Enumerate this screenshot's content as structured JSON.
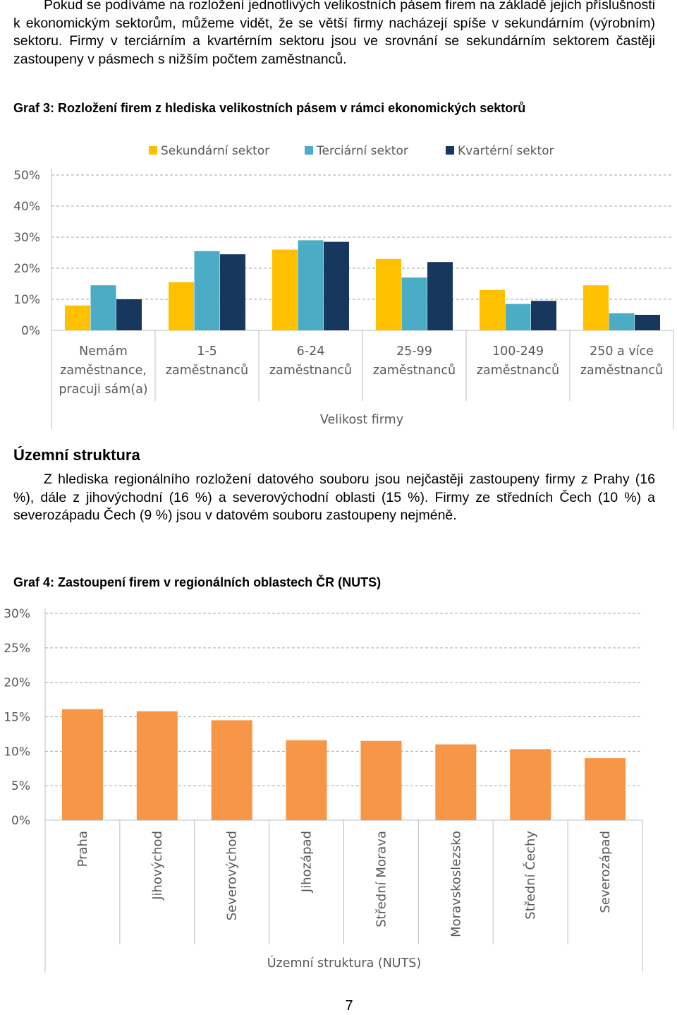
{
  "paragraph_1": "Pokud se podíváme na rozložení jednotlivých velikostních pásem firem na základě jejich příslušnosti k ekonomickým sektorům, můžeme vidět, že se větší firmy nacházejí spíše v sekundárním (výrobním) sektoru. Firmy v terciárním a kvartérním sektoru jsou ve srovnání se sekundárním sektorem častěji zastoupeny v pásmech s nižším počtem zaměstnanců.",
  "caption_1": "Graf 3: Rozložení firem z hlediska velikostních pásem v rámci ekonomických sektorů",
  "heading": "Územní struktura",
  "paragraph_2": "Z hlediska regionálního rozložení datového souboru jsou nejčastěji zastoupeny firmy z Prahy (16 %), dále z jihovýchodní (16 %) a severovýchodní oblasti (15 %). Firmy ze středních Čech (10 %) a severozápadu Čech (9 %) jsou v datovém souboru zastoupeny nejméně.",
  "caption_2": "Graf 4: Zastoupení firem v regionálních oblastech ČR (NUTS)",
  "page_number": "7",
  "chart_data": [
    {
      "type": "bar",
      "title": "",
      "xlabel": "Velikost firmy",
      "ylabel": "",
      "ylim": [
        0,
        50
      ],
      "yticks": [
        "0%",
        "10%",
        "20%",
        "30%",
        "40%",
        "50%"
      ],
      "grid": "dashed horizontal",
      "legend": "top",
      "categories": [
        [
          "Nemám",
          "zaměstnance,",
          "pracuji sám(a)"
        ],
        [
          "1-5",
          "zaměstnanců"
        ],
        [
          "6-24",
          "zaměstnanců"
        ],
        [
          "25-99",
          "zaměstnanců"
        ],
        [
          "100-249",
          "zaměstnanců"
        ],
        [
          "250 a více",
          "zaměstnanců"
        ]
      ],
      "series": [
        {
          "name": "Sekundární sektor",
          "color": "#FFC000",
          "values": [
            8,
            15.5,
            26,
            23,
            13,
            14.5
          ]
        },
        {
          "name": "Terciární sektor",
          "color": "#4BACC6",
          "values": [
            14.5,
            25.5,
            29,
            17,
            8.5,
            5.5
          ]
        },
        {
          "name": "Kvartérní sektor",
          "color": "#17375E",
          "values": [
            10,
            24.5,
            28.5,
            22,
            9.5,
            5
          ]
        }
      ]
    },
    {
      "type": "bar",
      "title": "",
      "xlabel": "Územní struktura (NUTS)",
      "ylabel": "",
      "ylim": [
        0,
        30
      ],
      "yticks": [
        "0%",
        "5%",
        "10%",
        "15%",
        "20%",
        "25%",
        "30%"
      ],
      "grid": "dashed horizontal",
      "color": "#F79646",
      "categories": [
        "Praha",
        "Jihovýchod",
        "Severovýchod",
        "Jihozápad",
        "Střední Morava",
        "Moravskoslezsko",
        "Střední Čechy",
        "Severozápad"
      ],
      "values": [
        16.1,
        15.8,
        14.5,
        11.6,
        11.5,
        11,
        10.3,
        9
      ]
    }
  ]
}
